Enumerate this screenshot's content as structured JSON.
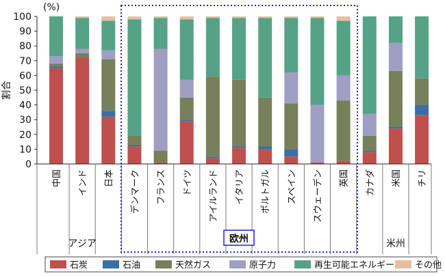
{
  "chart_data": {
    "type": "bar",
    "stacked": true,
    "unit_label": "(%)",
    "ylabel": "割合",
    "ylim": [
      0,
      100
    ],
    "yticks": [
      0,
      10,
      20,
      30,
      40,
      50,
      60,
      70,
      80,
      90,
      100
    ],
    "categories": [
      "中国",
      "インド",
      "日本",
      "デンマーク",
      "フランス",
      "ドイツ",
      "アイルランド",
      "イタリア",
      "ポルトガル",
      "スペイン",
      "スウェーデン",
      "英国",
      "カナダ",
      "米国",
      "チリ"
    ],
    "groups": [
      {
        "label": "アジア",
        "categories": [
          "中国",
          "インド",
          "日本"
        ]
      },
      {
        "label": "欧州",
        "categories": [
          "デンマーク",
          "フランス",
          "ドイツ",
          "アイルランド",
          "イタリア",
          "ポルトガル",
          "スペイン",
          "スウェーデン",
          "英国"
        ]
      },
      {
        "label": "米州",
        "categories": [
          "カナダ",
          "米国",
          "チリ"
        ]
      }
    ],
    "highlight_group": "欧州",
    "series": [
      {
        "name": "石炭",
        "color": "#c0504d",
        "values": [
          65,
          72,
          32,
          12,
          1,
          29,
          4,
          11,
          10,
          5,
          1,
          2,
          8,
          24,
          33
        ]
      },
      {
        "name": "石油",
        "color": "#3a6fa5",
        "values": [
          1,
          0,
          4,
          1,
          0,
          1,
          1,
          1,
          2,
          5,
          0,
          0,
          1,
          1,
          7
        ]
      },
      {
        "name": "天然ガス",
        "color": "#77805a",
        "values": [
          2,
          3,
          35,
          6,
          8,
          15,
          54,
          45,
          33,
          31,
          0,
          41,
          10,
          38,
          18
        ]
      },
      {
        "name": "原子力",
        "color": "#a09ec3",
        "values": [
          5,
          3,
          6,
          0,
          69,
          12,
          0,
          0,
          0,
          21,
          39,
          17,
          15,
          19,
          0
        ]
      },
      {
        "name": "再生可能エネルギー",
        "color": "#56a287",
        "values": [
          27,
          21,
          20,
          79,
          21,
          41,
          40,
          42,
          54,
          37,
          59,
          37,
          66,
          18,
          42
        ]
      },
      {
        "name": "その他",
        "color": "#e5bfa3",
        "values": [
          0,
          1,
          3,
          2,
          1,
          2,
          1,
          1,
          1,
          1,
          1,
          3,
          0,
          0,
          0
        ]
      }
    ],
    "legend_position": "bottom"
  }
}
